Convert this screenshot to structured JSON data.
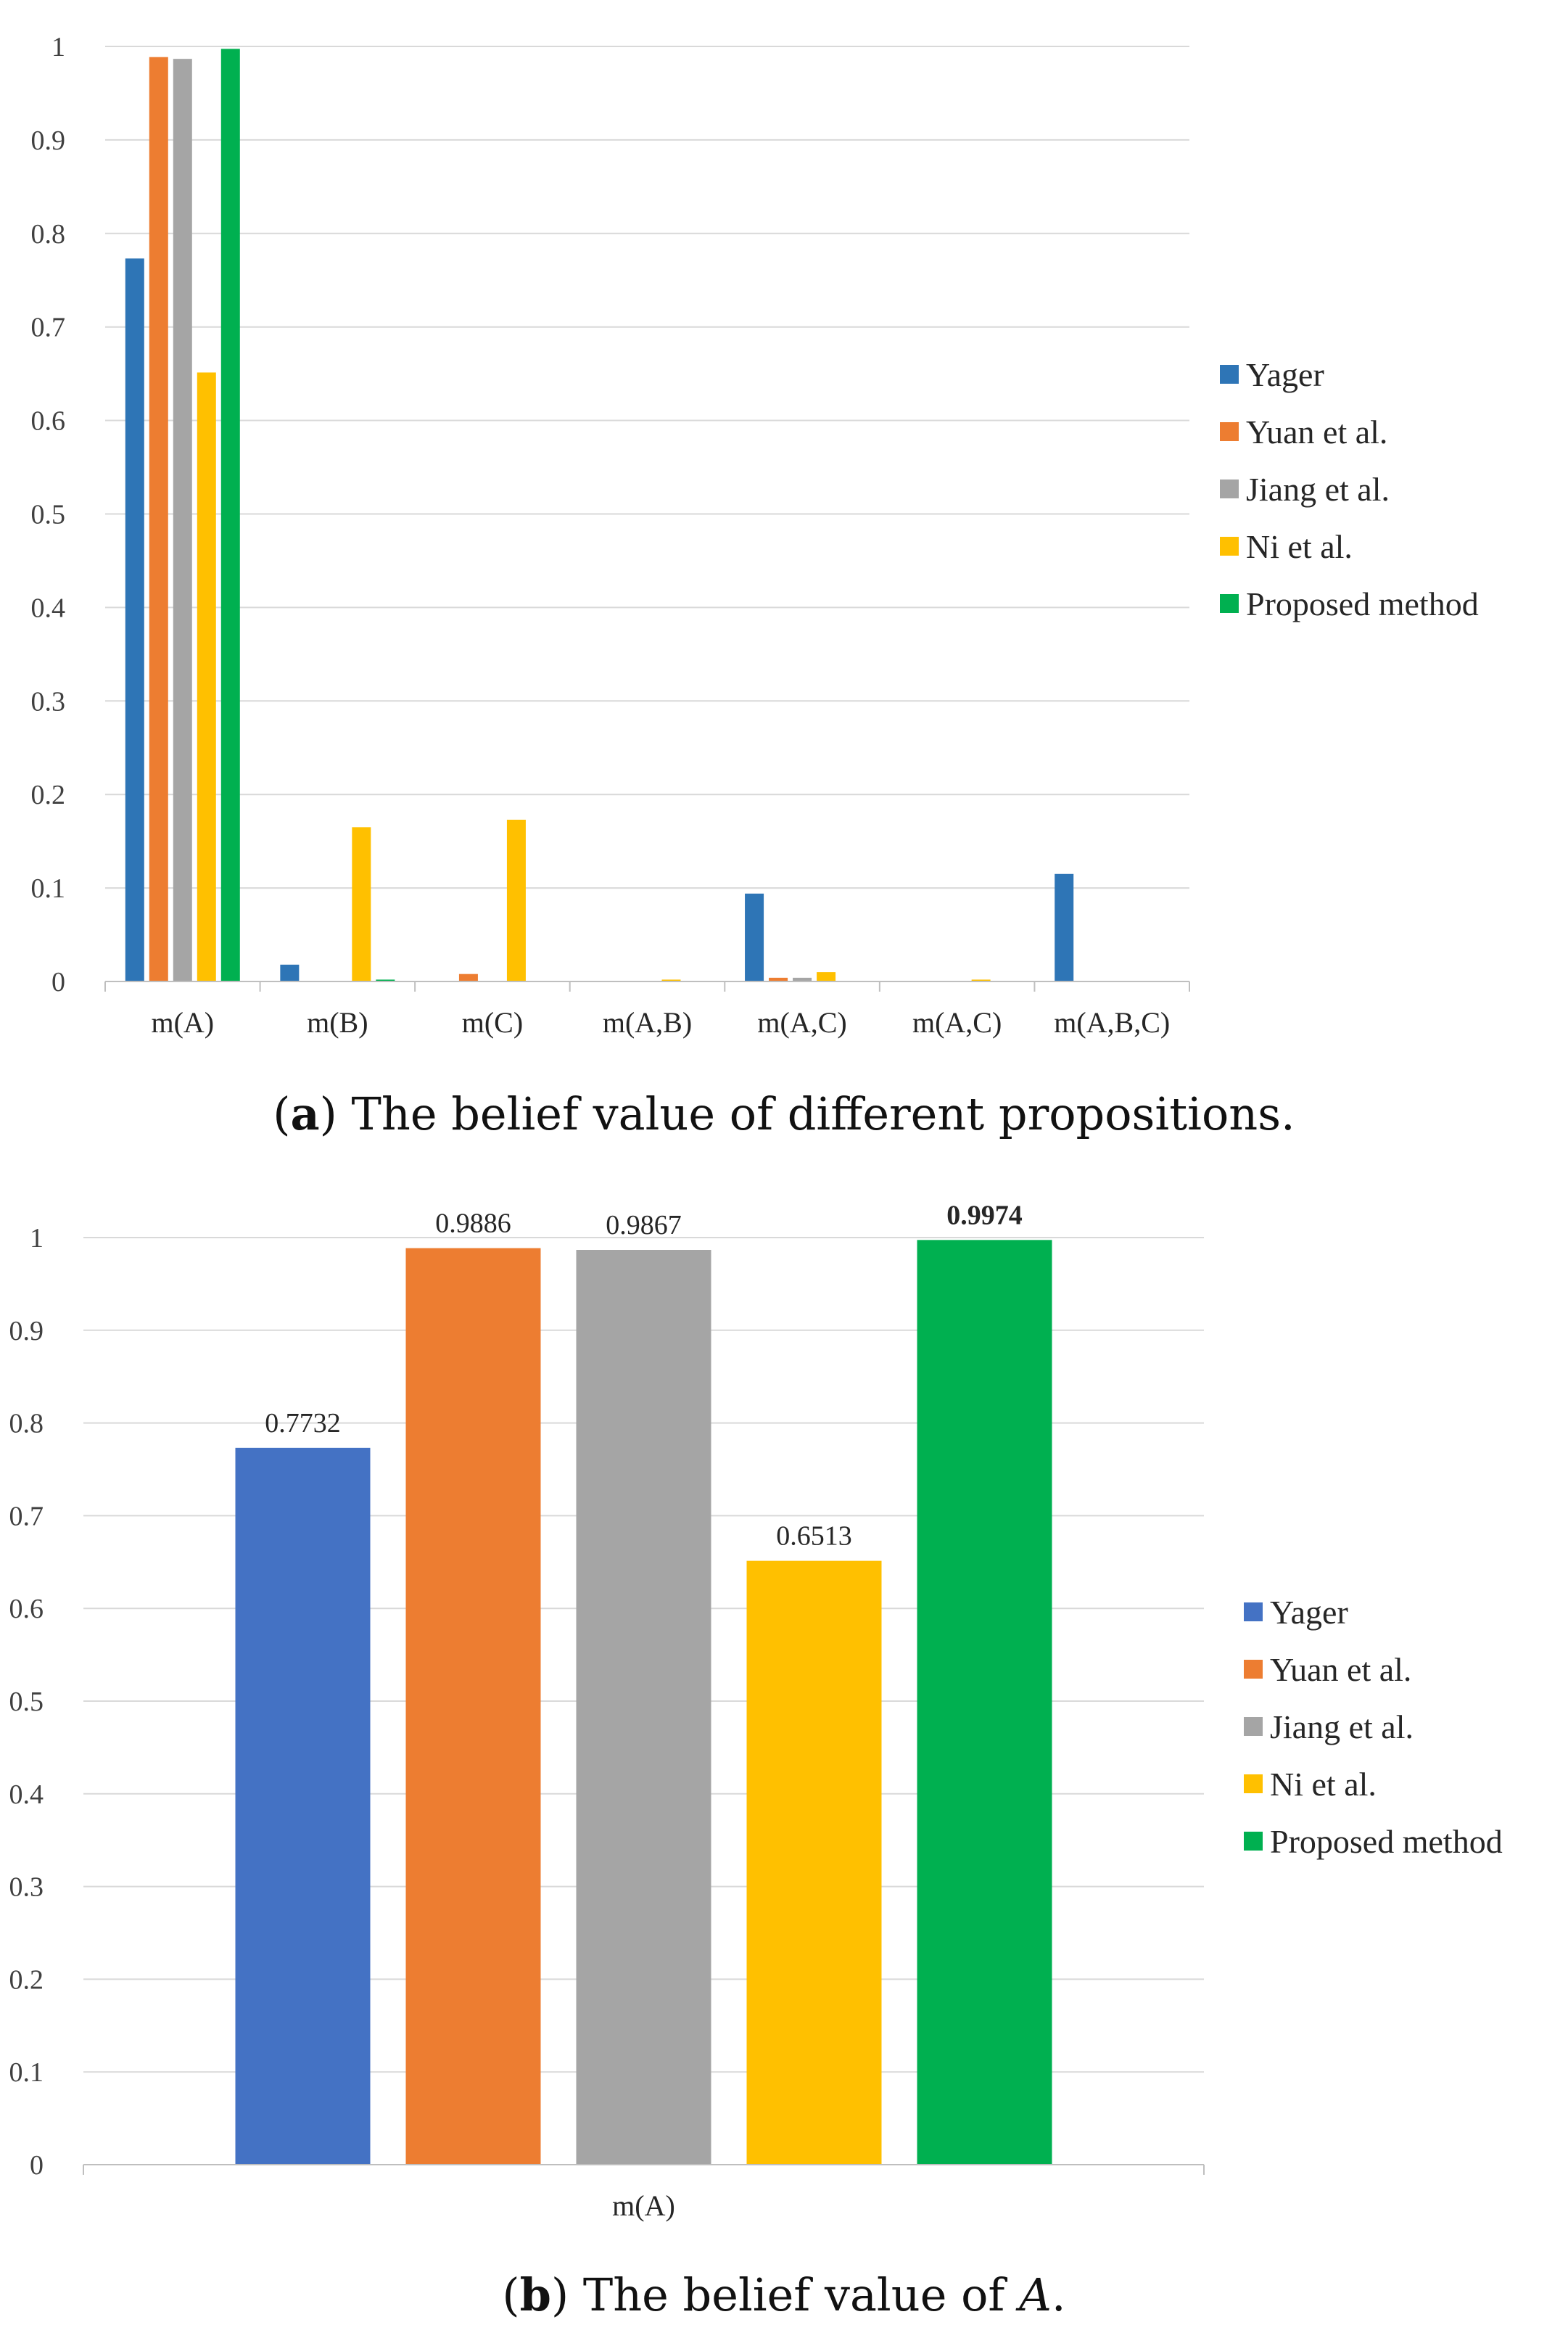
{
  "figure": {
    "panel_a": {
      "caption_letter": "a",
      "caption_text": "The belief value of different propositions."
    },
    "panel_b": {
      "caption_letter": "b",
      "caption_text": "The belief value of ",
      "caption_symbol": "A",
      "caption_end": "."
    }
  },
  "chart_data": [
    {
      "type": "bar",
      "id": "a",
      "categories": [
        "m(A)",
        "m(B)",
        "m(C)",
        "m(A,B)",
        "m(A,C)",
        "m(A,C)",
        "m(A,B,C)"
      ],
      "series": [
        {
          "name": "Yager",
          "color": "#2E75B6",
          "values": [
            0.7732,
            0.018,
            0,
            0,
            0.094,
            0,
            0.115
          ]
        },
        {
          "name": "Yuan et al.",
          "color": "#ED7D31",
          "values": [
            0.9886,
            0,
            0.008,
            0,
            0.004,
            0,
            0
          ]
        },
        {
          "name": "Jiang et al.",
          "color": "#A5A5A5",
          "values": [
            0.9867,
            0,
            0,
            0,
            0.004,
            0,
            0
          ]
        },
        {
          "name": "Ni et al.",
          "color": "#FFC000",
          "values": [
            0.6513,
            0.165,
            0.173,
            0.002,
            0.01,
            0.002,
            0
          ]
        },
        {
          "name": "Proposed method",
          "color": "#00B050",
          "values": [
            0.9974,
            0.002,
            0,
            0,
            0,
            0,
            0
          ]
        }
      ],
      "ylim": [
        0,
        1
      ],
      "yticks": [
        "0",
        "0.1",
        "0.2",
        "0.3",
        "0.4",
        "0.5",
        "0.6",
        "0.7",
        "0.8",
        "0.9",
        "1"
      ],
      "grid": true,
      "legend": "right"
    },
    {
      "type": "bar",
      "id": "b",
      "categories": [
        "m(A)"
      ],
      "series": [
        {
          "name": "Yager",
          "color": "#4472C4",
          "values": [
            0.7732
          ],
          "label": "0.7732",
          "bold": false
        },
        {
          "name": "Yuan et al.",
          "color": "#ED7D31",
          "values": [
            0.9886
          ],
          "label": "0.9886",
          "bold": false
        },
        {
          "name": "Jiang et al.",
          "color": "#A5A5A5",
          "values": [
            0.9867
          ],
          "label": "0.9867",
          "bold": false
        },
        {
          "name": "Ni et al.",
          "color": "#FFC000",
          "values": [
            0.6513
          ],
          "label": "0.6513",
          "bold": false
        },
        {
          "name": "Proposed method",
          "color": "#00B050",
          "values": [
            0.9974
          ],
          "label": "0.9974",
          "bold": true
        }
      ],
      "ylim": [
        0,
        1
      ],
      "yticks": [
        "0",
        "0.1",
        "0.2",
        "0.3",
        "0.4",
        "0.5",
        "0.6",
        "0.7",
        "0.8",
        "0.9",
        "1"
      ],
      "grid": true,
      "legend": "right"
    }
  ]
}
